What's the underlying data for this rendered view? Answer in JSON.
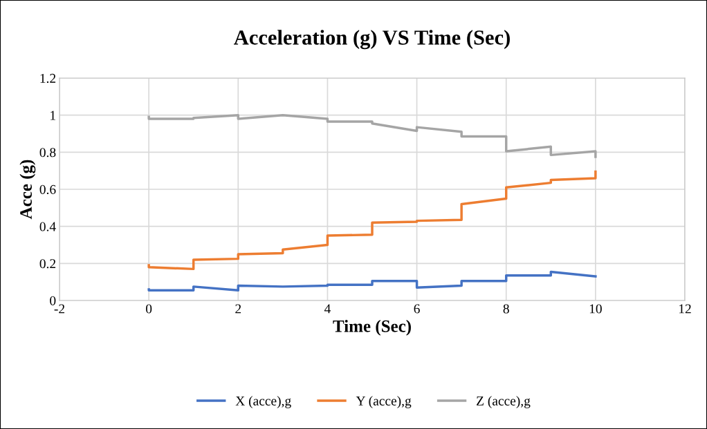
{
  "chart_data": {
    "type": "line",
    "title": "Acceleration (g) VS Time (Sec)",
    "xlabel": "Time (Sec)",
    "ylabel": "Acce (g)",
    "xlim": [
      -2,
      12
    ],
    "xticks": [
      -2,
      0,
      2,
      4,
      6,
      8,
      10,
      12
    ],
    "ylim": [
      0,
      1.2
    ],
    "yticks": [
      0,
      0.2,
      0.4,
      0.6,
      0.8,
      1,
      1.2
    ],
    "grid": true,
    "legend": "bottom",
    "marker": "none",
    "series": [
      {
        "name": "X (acce),g",
        "color": "#4472c4",
        "x": [
          0,
          0,
          1,
          1,
          2,
          2,
          3,
          4,
          4,
          5,
          5,
          6,
          6,
          7,
          7,
          8,
          8,
          9,
          9,
          10
        ],
        "values": [
          0.06,
          0.055,
          0.055,
          0.075,
          0.055,
          0.08,
          0.075,
          0.08,
          0.085,
          0.085,
          0.105,
          0.105,
          0.07,
          0.08,
          0.105,
          0.105,
          0.135,
          0.135,
          0.155,
          0.13
        ]
      },
      {
        "name": "Y (acce),g",
        "color": "#ed7d31",
        "x": [
          0,
          0,
          1,
          1,
          2,
          2,
          3,
          3,
          4,
          4,
          5,
          5,
          6,
          6,
          7,
          7,
          8,
          8,
          9,
          9,
          10,
          10
        ],
        "values": [
          0.19,
          0.18,
          0.17,
          0.22,
          0.225,
          0.25,
          0.255,
          0.275,
          0.3,
          0.35,
          0.355,
          0.42,
          0.425,
          0.43,
          0.435,
          0.52,
          0.55,
          0.61,
          0.635,
          0.65,
          0.66,
          0.695
        ]
      },
      {
        "name": "Z (acce),g",
        "color": "#a5a5a5",
        "x": [
          0,
          0,
          1,
          1,
          2,
          2,
          3,
          4,
          4,
          5,
          5,
          6,
          6,
          7,
          7,
          8,
          8,
          9,
          9,
          10,
          10
        ],
        "values": [
          0.99,
          0.98,
          0.98,
          0.985,
          1.0,
          0.98,
          1.0,
          0.98,
          0.965,
          0.965,
          0.955,
          0.915,
          0.935,
          0.91,
          0.885,
          0.885,
          0.805,
          0.83,
          0.785,
          0.805,
          0.775
        ]
      }
    ]
  }
}
